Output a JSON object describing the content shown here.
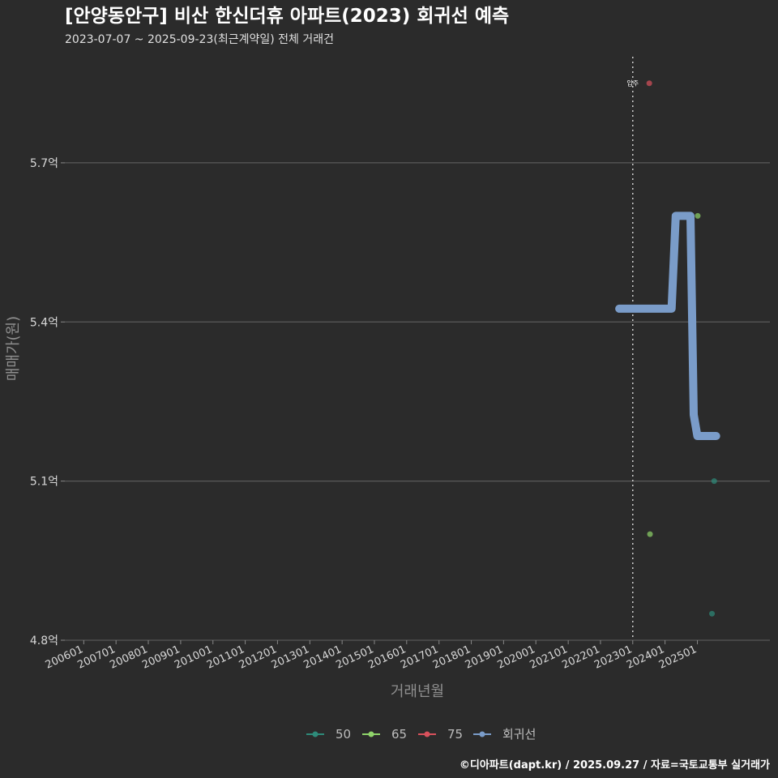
{
  "title": "[안양동안구] 비산 한신더휴 아파트(2023) 회귀선 예측",
  "subtitle": "2023-07-07 ~ 2025-09-23(최근계약일) 전체 거래건",
  "caption": "©디아파트(dapt.kr) / 2025.09.27 / 자료=국토교통부 실거래가",
  "colors": {
    "background": "#2b2b2b",
    "s50": "#2e8b7a",
    "s65": "#8fd46a",
    "s75": "#d9515c",
    "regression": "#7a9cc9"
  },
  "chart_data": {
    "type": "line",
    "xlabel": "거래년월",
    "ylabel": "매매가(원)",
    "ylim": [
      4.8,
      5.9
    ],
    "yticks": [
      {
        "value": 4.8,
        "label": "4.8억"
      },
      {
        "value": 5.1,
        "label": "5.1억"
      },
      {
        "value": 5.4,
        "label": "5.4억"
      },
      {
        "value": 5.7,
        "label": "5.7억"
      }
    ],
    "xlim": [
      "2005-06-01",
      "2027-04-01"
    ],
    "xticks": [
      "200601",
      "200701",
      "200801",
      "200901",
      "201001",
      "201101",
      "201201",
      "201301",
      "201401",
      "201501",
      "201601",
      "201701",
      "201801",
      "201901",
      "202001",
      "202101",
      "202201",
      "202301",
      "202401",
      "202501"
    ],
    "grid": "horizontal major lines",
    "legend_position": "bottom",
    "annotation": {
      "label": "입주",
      "x": "2023-01-01",
      "y": 5.85
    },
    "series": [
      {
        "name": "50",
        "kind": "points",
        "color": "#2e8b7a",
        "points": [
          {
            "x": "2025-06-15",
            "y": 4.85
          },
          {
            "x": "2025-07-10",
            "y": 5.1
          }
        ]
      },
      {
        "name": "65",
        "kind": "points",
        "color": "#8fd46a",
        "points": [
          {
            "x": "2023-07-15",
            "y": 5.0
          },
          {
            "x": "2025-01-05",
            "y": 5.6
          }
        ]
      },
      {
        "name": "75",
        "kind": "points",
        "color": "#d9515c",
        "points": [
          {
            "x": "2023-07-07",
            "y": 5.85
          }
        ]
      },
      {
        "name": "회귀선",
        "kind": "line",
        "color": "#7a9cc9",
        "points": [
          {
            "x": "2022-08-01",
            "y": 5.425
          },
          {
            "x": "2024-03-15",
            "y": 5.425
          },
          {
            "x": "2024-05-01",
            "y": 5.6
          },
          {
            "x": "2024-10-15",
            "y": 5.6
          },
          {
            "x": "2024-11-20",
            "y": 5.225
          },
          {
            "x": "2025-01-01",
            "y": 5.185
          },
          {
            "x": "2025-08-01",
            "y": 5.185
          }
        ]
      }
    ]
  }
}
